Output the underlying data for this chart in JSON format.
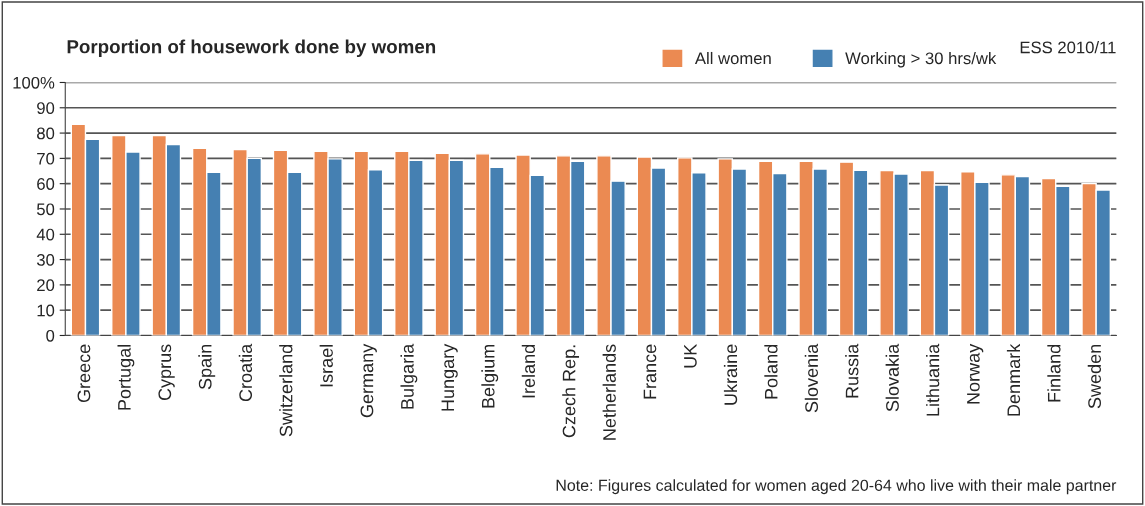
{
  "chart_data": {
    "type": "bar",
    "title": "Porportion of housework done by women",
    "categories": [
      "Greece",
      "Portugal",
      "Cyprus",
      "Spain",
      "Croatia",
      "Switzerland",
      "Israel",
      "Germany",
      "Bulgaria",
      "Hungary",
      "Belgium",
      "Ireland",
      "Czech Rep.",
      "Netherlands",
      "France",
      "UK",
      "Ukraine",
      "Poland",
      "Slovenia",
      "Russia",
      "Slovakia",
      "Lithuania",
      "Norway",
      "Denmark",
      "Finland",
      "Sweden"
    ],
    "series": [
      {
        "name": "All women",
        "color": "#eb8a52",
        "values": [
          83.5,
          79,
          79,
          74,
          73.5,
          73.2,
          72.8,
          72.8,
          72.8,
          72,
          71.8,
          71.3,
          71,
          71,
          70.5,
          70.2,
          69.8,
          68.8,
          68.8,
          68.5,
          65.2,
          65.2,
          64.7,
          63.5,
          62,
          60
        ]
      },
      {
        "name": "Working > 30 hrs/wk",
        "color": "#4580b2",
        "values": [
          77.5,
          72.5,
          75.5,
          64.5,
          70,
          64.5,
          69.8,
          65.5,
          69.2,
          69.2,
          66.5,
          63.3,
          68.8,
          61,
          66.2,
          64.3,
          65.8,
          64,
          65.8,
          65.3,
          63.8,
          59.5,
          60.5,
          62.8,
          59,
          57.5
        ]
      }
    ],
    "ylim": [
      0,
      100
    ],
    "yticks": [
      0,
      10,
      20,
      30,
      40,
      50,
      60,
      70,
      80,
      90,
      {
        "value": 100,
        "label": "100%"
      }
    ],
    "grid": "y",
    "legend": "top right",
    "annotations": [
      "ESS 2010/11",
      "Note: Figures calculated for women aged 20-64 who live with their male partner"
    ]
  }
}
